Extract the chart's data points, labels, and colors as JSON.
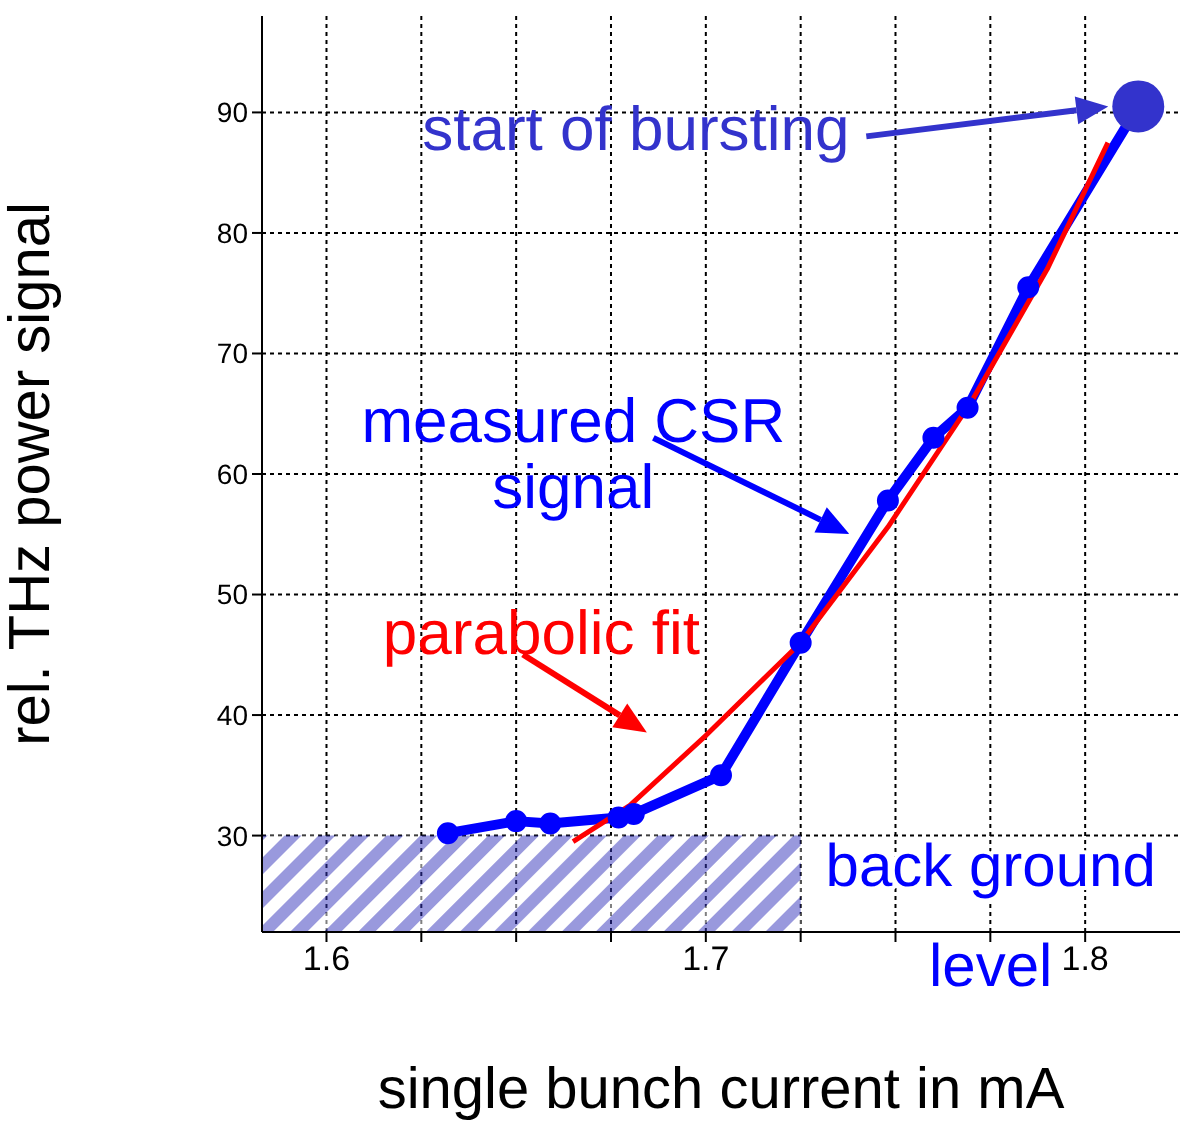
{
  "chart_data": {
    "type": "line",
    "xlabel": "single bunch current in mA",
    "ylabel": "rel. THz power signal",
    "xlim": [
      1.583,
      1.825
    ],
    "ylim": [
      22,
      98
    ],
    "xticks": [
      1.6,
      {
        "value": 1.625,
        "label": null
      },
      {
        "value": 1.65,
        "label": null
      },
      {
        "value": 1.675,
        "label": null
      },
      1.7,
      {
        "value": 1.725,
        "label": null
      },
      {
        "value": 1.75,
        "label": null
      },
      {
        "value": 1.775,
        "label": null
      },
      1.8
    ],
    "yticks": [
      30,
      40,
      50,
      60,
      70,
      80,
      90
    ],
    "grid": true,
    "line_style": "solid",
    "series": [
      {
        "color": "#0000ff",
        "marker": "circle",
        "x": [
          1.632,
          1.65,
          1.659,
          1.677,
          1.681,
          1.704,
          1.725,
          1.748,
          1.76,
          1.769,
          1.785,
          1.814
        ],
        "values": [
          30.2,
          31.2,
          31.0,
          31.5,
          31.8,
          35,
          46,
          57.8,
          63,
          65.5,
          75.5,
          90.5
        ]
      },
      {
        "color": "#ff0000",
        "marker": "none",
        "x": [
          1.665,
          1.68,
          1.7,
          1.725,
          1.748,
          1.77,
          1.79,
          1.806
        ],
        "values": [
          29.5,
          32.5,
          38.3,
          46,
          55.6,
          66,
          77,
          87.5
        ]
      },
      {
        "type": "scatter",
        "color": "#3333cc",
        "marker": "circle",
        "x": [
          1.814
        ],
        "values": [
          90.5
        ]
      }
    ],
    "bands": [
      {
        "axis": "y",
        "from": 22,
        "to": 30,
        "label": "back ground level",
        "color": "#3333bb"
      }
    ],
    "annotations": [
      "start of bursting",
      {
        "text": "measured CSR signal",
        "x": 1.741,
        "y": 54.2
      },
      {
        "text": "parabolic fit",
        "x": 1.695,
        "y": 36.9
      }
    ]
  }
}
